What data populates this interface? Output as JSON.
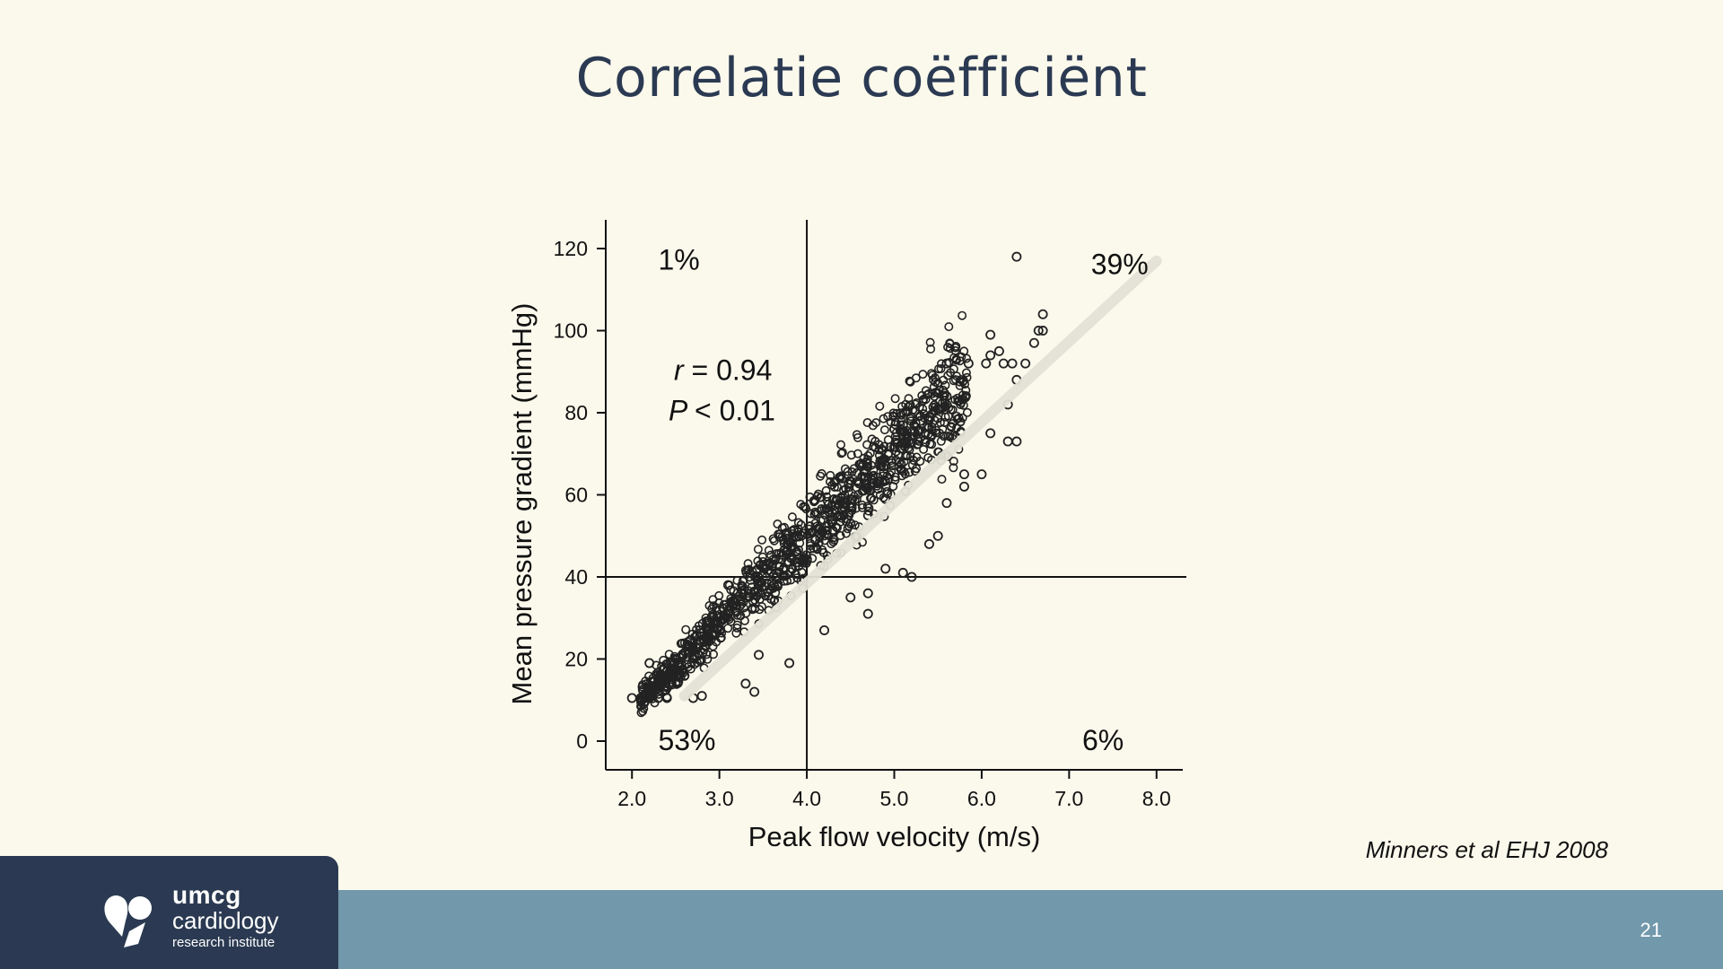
{
  "slide": {
    "title": "Correlatie coëfficiënt",
    "citation": "Minners et al EHJ 2008",
    "page_number": "21"
  },
  "logo": {
    "line1": "umcg",
    "line2": "cardiology",
    "line3": "research institute"
  },
  "chart_data": {
    "type": "scatter",
    "xlabel": "Peak flow velocity (m/s)",
    "ylabel": "Mean pressure gradient (mmHg)",
    "xlim": [
      1.7,
      8.3
    ],
    "ylim": [
      -7,
      127
    ],
    "xticks": [
      "2.0",
      "3.0",
      "4.0",
      "5.0",
      "6.0",
      "7.0",
      "8.0"
    ],
    "yticks": [
      "0",
      "20",
      "40",
      "60",
      "80",
      "100",
      "120"
    ],
    "reference_lines": {
      "x": 4.0,
      "y": 40
    },
    "regression_line": {
      "x": [
        2.6,
        8.0
      ],
      "y": [
        11,
        117
      ]
    },
    "stats": {
      "r_label": "r",
      "r_value": "= 0.94",
      "p_label": "P",
      "p_value": "< 0.01"
    },
    "quadrant_labels": [
      {
        "text": "1%",
        "x": 2.3,
        "y": 117
      },
      {
        "text": "39%",
        "x": 7.25,
        "y": 116
      },
      {
        "text": "53%",
        "x": 2.3,
        "y": 0
      },
      {
        "text": "6%",
        "x": 7.15,
        "y": 0
      }
    ],
    "cloud": {
      "description_free": true,
      "center_line": {
        "x": [
          2.1,
          5.8
        ],
        "y": [
          10,
          87
        ]
      },
      "x_range": [
        2.1,
        5.85
      ]
    },
    "points": [
      [
        2.0,
        10.5
      ],
      [
        2.1,
        10.5
      ],
      [
        2.2,
        10.5
      ],
      [
        2.3,
        10.5
      ],
      [
        2.4,
        10.5
      ],
      [
        2.2,
        19
      ],
      [
        2.7,
        10.5
      ],
      [
        2.8,
        11
      ],
      [
        3.1,
        38
      ],
      [
        3.4,
        12
      ],
      [
        3.3,
        14
      ],
      [
        3.8,
        19
      ],
      [
        3.45,
        21
      ],
      [
        4.1,
        49
      ],
      [
        4.3,
        51
      ],
      [
        4.5,
        53
      ],
      [
        4.7,
        55
      ],
      [
        4.9,
        59
      ],
      [
        4.2,
        27
      ],
      [
        4.5,
        35
      ],
      [
        4.7,
        36
      ],
      [
        4.7,
        31
      ],
      [
        4.9,
        42
      ],
      [
        5.1,
        41
      ],
      [
        5.2,
        40
      ],
      [
        5.0,
        76
      ],
      [
        5.1,
        77
      ],
      [
        5.3,
        78
      ],
      [
        5.4,
        79
      ],
      [
        5.5,
        81
      ],
      [
        5.6,
        84
      ],
      [
        5.4,
        48
      ],
      [
        5.5,
        50
      ],
      [
        5.6,
        58
      ],
      [
        5.8,
        62
      ],
      [
        5.8,
        65
      ],
      [
        6.0,
        65
      ],
      [
        5.6,
        92
      ],
      [
        5.85,
        92
      ],
      [
        6.05,
        92
      ],
      [
        6.1,
        94
      ],
      [
        6.2,
        95
      ],
      [
        6.25,
        92
      ],
      [
        6.1,
        99
      ],
      [
        6.35,
        92
      ],
      [
        6.4,
        88
      ],
      [
        6.3,
        82
      ],
      [
        6.1,
        75
      ],
      [
        6.3,
        73
      ],
      [
        6.4,
        73
      ],
      [
        6.4,
        118
      ],
      [
        6.6,
        97
      ],
      [
        6.65,
        100
      ],
      [
        6.7,
        100
      ],
      [
        6.7,
        104
      ],
      [
        6.5,
        92
      ]
    ]
  }
}
